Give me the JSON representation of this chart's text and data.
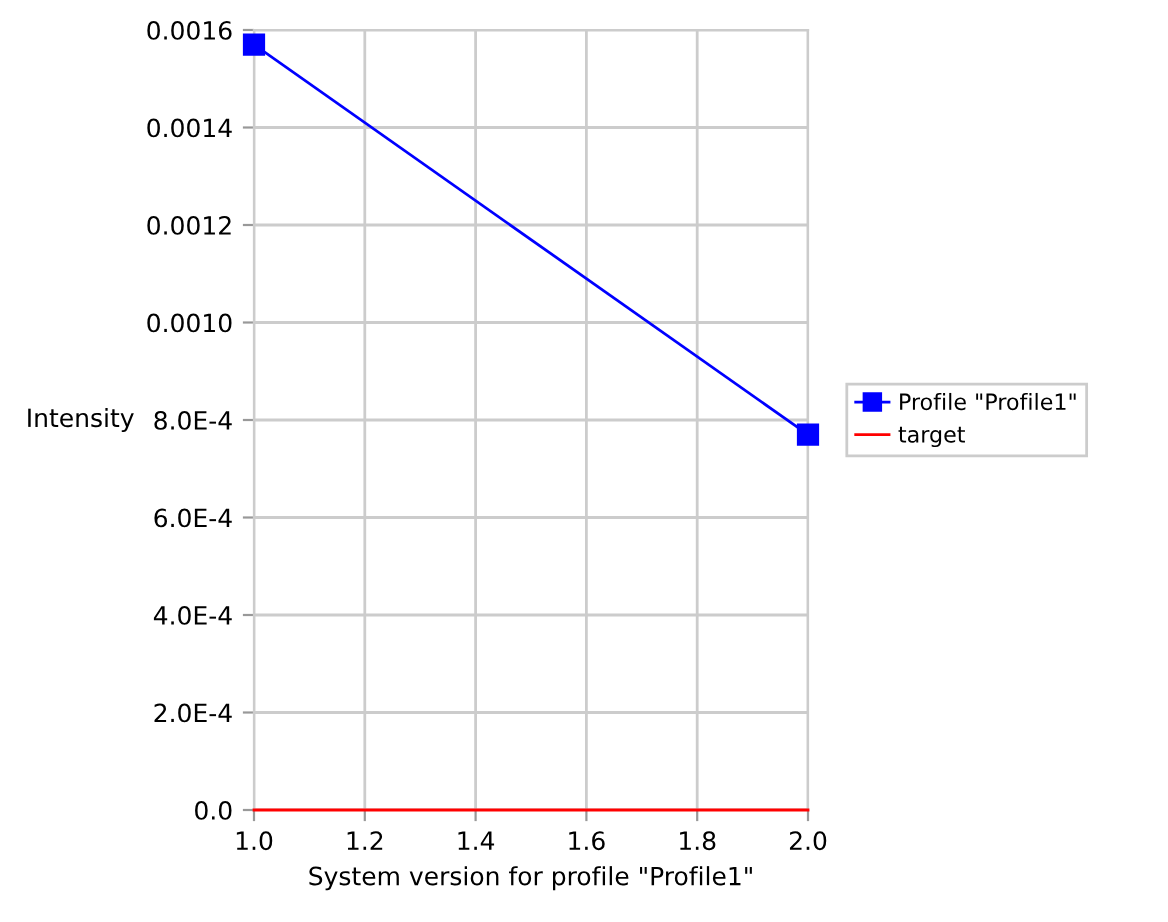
{
  "chart_data": {
    "type": "line",
    "x": [
      1.0,
      2.0
    ],
    "xlabel": "System version for profile \"Profile1\"",
    "ylabel": "Intensity",
    "series": [
      {
        "name": "Profile \"Profile1\"",
        "color": "#0000ff",
        "values": [
          0.00157,
          0.00077
        ],
        "marker": "square"
      },
      {
        "name": "target",
        "color": "#ff0000",
        "values": [
          0.0,
          0.0
        ],
        "marker": "none"
      }
    ],
    "xlim": [
      1.0,
      2.0
    ],
    "xticks": [
      {
        "value": 1.0,
        "label": "1.0"
      },
      {
        "value": 1.2,
        "label": "1.2"
      },
      {
        "value": 1.4,
        "label": "1.4"
      },
      {
        "value": 1.6,
        "label": "1.6"
      },
      {
        "value": 1.8,
        "label": "1.8"
      },
      {
        "value": 2.0,
        "label": "2.0"
      }
    ],
    "ylim": [
      0.0,
      0.0016
    ],
    "yticks": [
      {
        "value": 0.0,
        "label": "0.0"
      },
      {
        "value": 0.0002,
        "label": "2.0E-4"
      },
      {
        "value": 0.0004,
        "label": "4.0E-4"
      },
      {
        "value": 0.0006,
        "label": "6.0E-4"
      },
      {
        "value": 0.0008,
        "label": "8.0E-4"
      },
      {
        "value": 0.001,
        "label": "0.0010"
      },
      {
        "value": 0.0012,
        "label": "0.0012"
      },
      {
        "value": 0.0014,
        "label": "0.0014"
      },
      {
        "value": 0.0016,
        "label": "0.0016"
      }
    ],
    "grid": true,
    "legend": "right"
  }
}
